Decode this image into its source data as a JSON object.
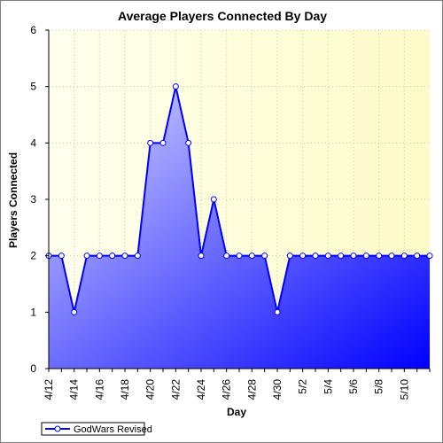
{
  "chart_data": {
    "type": "area",
    "title": "Average Players Connected By Day",
    "xlabel": "Day",
    "ylabel": "Players Connected",
    "ylim": [
      0,
      6
    ],
    "yticks": [
      "0",
      "1",
      "2",
      "3",
      "4",
      "5",
      "6"
    ],
    "grid": true,
    "legend_position": "bottom-left",
    "x": [
      "4/12",
      "4/13",
      "4/14",
      "4/15",
      "4/16",
      "4/17",
      "4/18",
      "4/19",
      "4/20",
      "4/21",
      "4/22",
      "4/23",
      "4/24",
      "4/25",
      "4/26",
      "4/27",
      "4/28",
      "4/29",
      "4/30",
      "5/1",
      "5/2",
      "5/3",
      "5/4",
      "5/5",
      "5/6",
      "5/7",
      "5/8",
      "5/9",
      "5/10",
      "5/11",
      "5/12"
    ],
    "xtick_labels": [
      "4/12",
      "4/14",
      "4/16",
      "4/18",
      "4/20",
      "4/22",
      "4/24",
      "4/26",
      "4/28",
      "4/30",
      "5/2",
      "5/4",
      "5/6",
      "5/8",
      "5/10"
    ],
    "series": [
      {
        "name": "GodWars Revised",
        "values": [
          2,
          2,
          1,
          2,
          2,
          2,
          2,
          2,
          4,
          4,
          5,
          4,
          2,
          3,
          2,
          2,
          2,
          2,
          1,
          2,
          2,
          2,
          2,
          2,
          2,
          2,
          2,
          2,
          2,
          2,
          2
        ],
        "color": "#0000ff"
      }
    ],
    "plot_background": [
      "#ffffee",
      "#fcfcc8"
    ]
  }
}
